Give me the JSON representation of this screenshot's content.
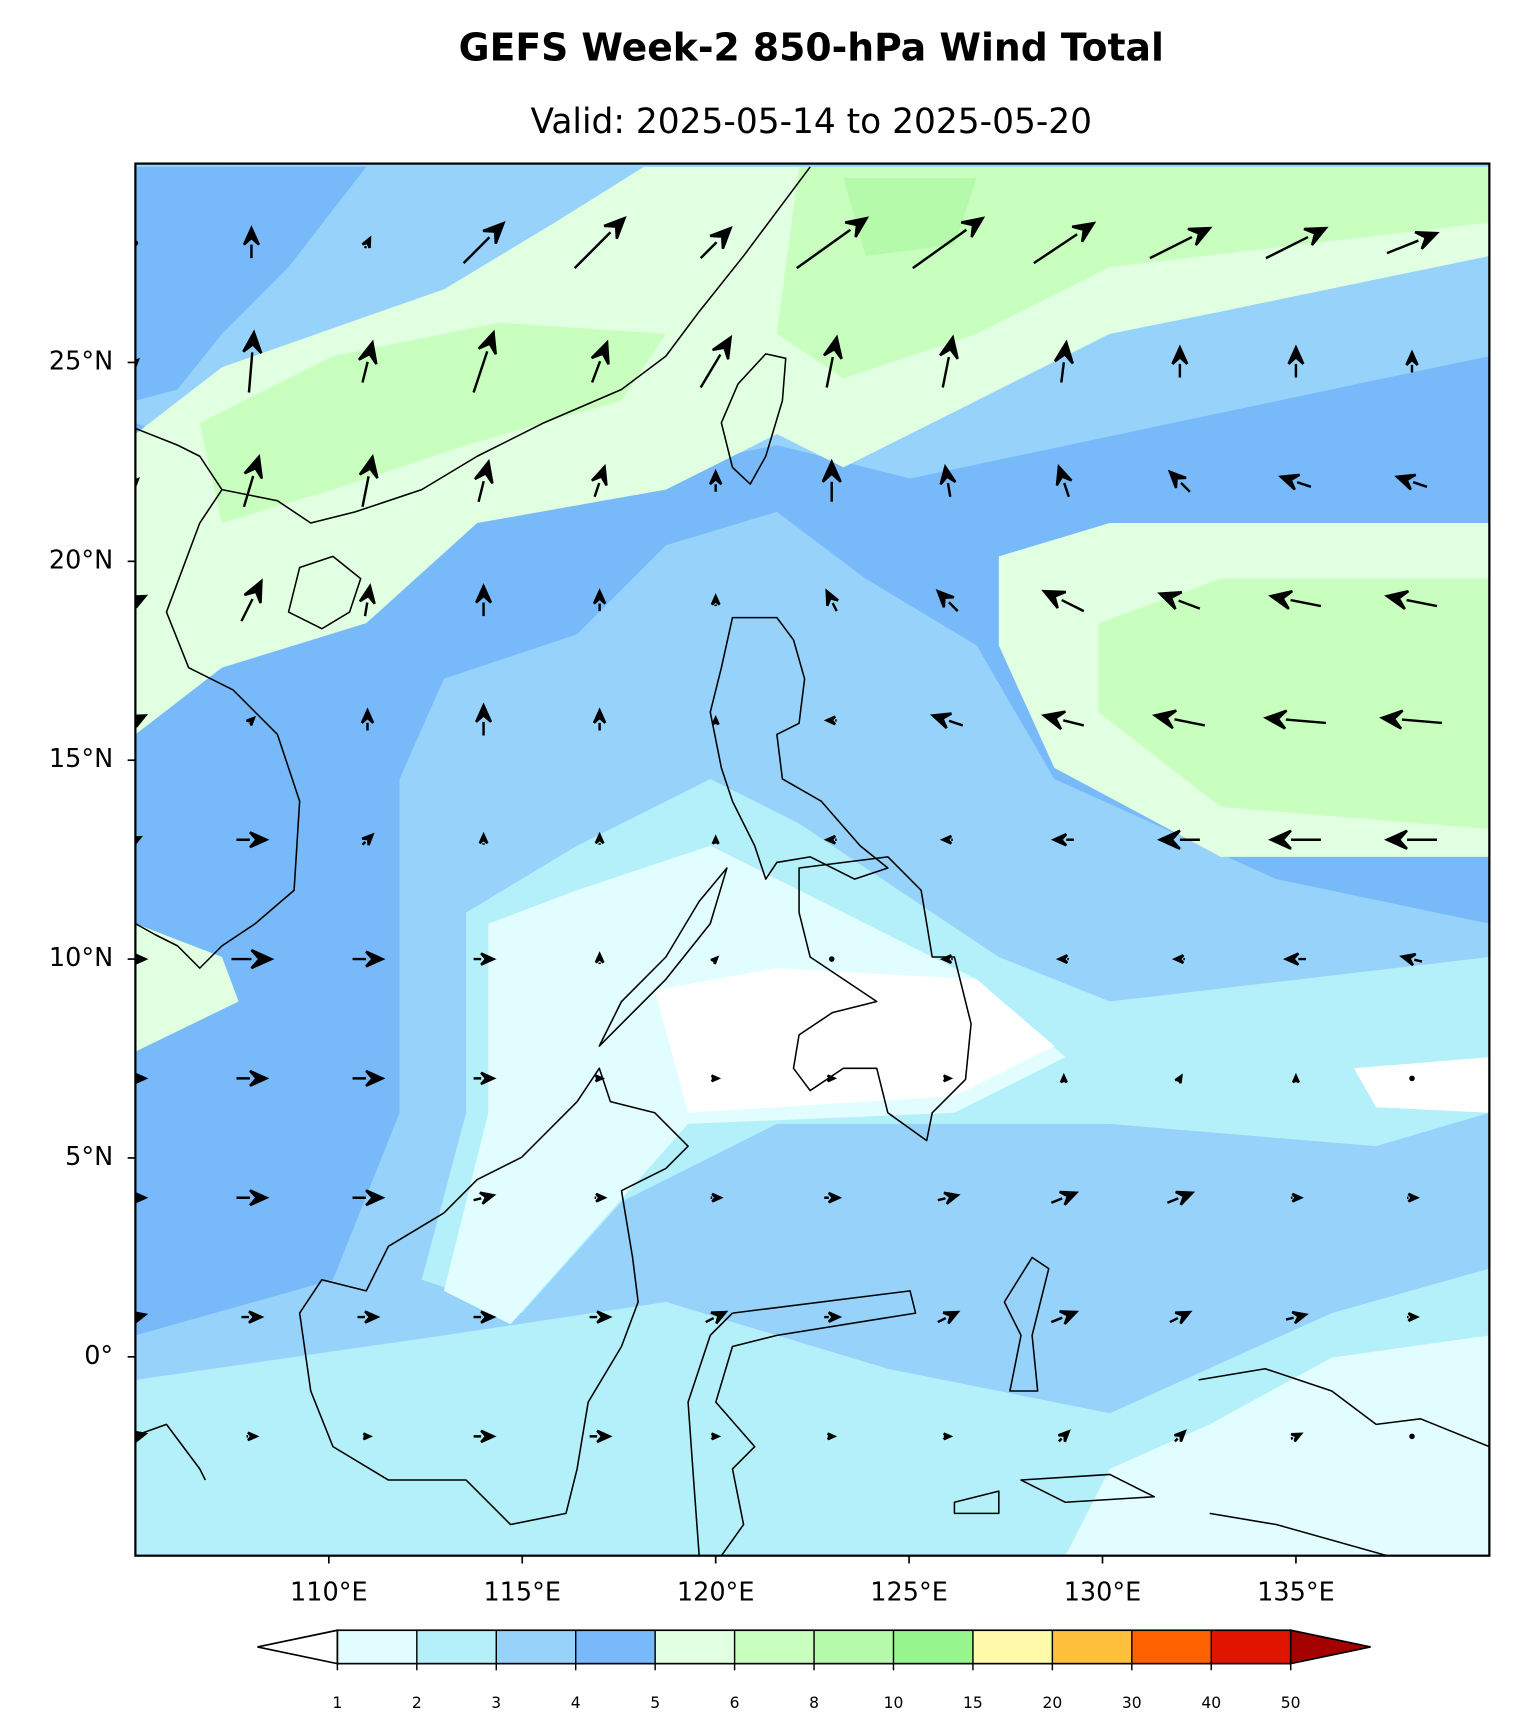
{
  "chart_data": {
    "type": "map",
    "title": "GEFS Week-2 850-hPa Wind Total",
    "subtitle": "Valid: 2025-05-14 to 2025-05-20",
    "xlim": [
      105,
      140
    ],
    "ylim": [
      -5,
      30
    ],
    "xticks": [
      {
        "value": 110,
        "label": "110°E"
      },
      {
        "value": 115,
        "label": "115°E"
      },
      {
        "value": 120,
        "label": "120°E"
      },
      {
        "value": 125,
        "label": "125°E"
      },
      {
        "value": 130,
        "label": "130°E"
      },
      {
        "value": 135,
        "label": "135°E"
      }
    ],
    "yticks": [
      {
        "value": 0,
        "label": "0°"
      },
      {
        "value": 5,
        "label": "5°N"
      },
      {
        "value": 10,
        "label": "10°N"
      },
      {
        "value": 15,
        "label": "15°N"
      },
      {
        "value": 20,
        "label": "20°N"
      },
      {
        "value": 25,
        "label": "25°N"
      }
    ],
    "colorbar": {
      "levels": [
        1,
        2,
        3,
        4,
        5,
        6,
        8,
        10,
        15,
        20,
        30,
        40,
        50
      ],
      "colors": [
        "#e1fdff",
        "#b4f0fa",
        "#96d2fa",
        "#78b9fa",
        "#e1ffe1",
        "#c8ffbe",
        "#b4faaa",
        "#96f58c",
        "#fffaaa",
        "#ffc03c",
        "#ff6000",
        "#e11400"
      ],
      "under": "#ffffff",
      "over": "#a50000"
    },
    "wind": {
      "lons": [
        105,
        108,
        111,
        114,
        117,
        120,
        123,
        126,
        129,
        132,
        135,
        138
      ],
      "lats": [
        28,
        25,
        22,
        19,
        16,
        13,
        10,
        7,
        4,
        1,
        -2
      ],
      "u": [
        [
          0,
          0,
          0.5,
          4,
          5,
          3,
          7,
          7,
          6,
          6,
          6,
          5
        ],
        [
          0.5,
          0.5,
          1,
          2,
          1.5,
          3,
          1,
          1,
          0.5,
          0,
          0,
          0
        ],
        [
          0.5,
          1.5,
          1,
          1,
          1,
          0,
          0,
          -0.5,
          -1,
          -2,
          -3,
          -3
        ],
        [
          2,
          2,
          0.5,
          0,
          0,
          0,
          -1,
          -2,
          -4,
          -4,
          -5,
          -5
        ],
        [
          2,
          0.5,
          0,
          0,
          0,
          0,
          -1,
          -3,
          -4,
          -5,
          -6,
          -6
        ],
        [
          1,
          3,
          1,
          0,
          0,
          0,
          -1,
          -1,
          -2,
          -4,
          -5,
          -5
        ],
        [
          2,
          4,
          3,
          2,
          0,
          0.3,
          0,
          -1,
          -1,
          -1,
          -2,
          -2
        ],
        [
          2,
          3,
          3,
          2,
          0.5,
          0.5,
          0.5,
          0.5,
          0,
          0.3,
          0,
          0
        ],
        [
          2,
          3,
          3,
          2,
          1,
          1,
          1.5,
          2,
          2.5,
          2.5,
          1,
          1
        ],
        [
          2,
          2,
          2,
          2,
          2,
          2,
          1.5,
          2,
          2.5,
          2,
          2,
          1
        ],
        [
          2,
          1,
          0.5,
          2,
          2,
          0.5,
          0.5,
          0.5,
          1,
          1,
          1,
          0
        ]
      ],
      "v": [
        [
          0,
          3,
          1,
          4,
          5,
          3,
          5,
          5,
          4,
          3,
          3,
          2
        ],
        [
          0.5,
          6,
          4,
          6,
          4,
          5,
          5,
          5,
          4,
          3,
          3,
          2
        ],
        [
          0.5,
          5,
          5,
          4,
          3,
          2,
          4,
          3,
          3,
          2,
          1,
          1
        ],
        [
          1,
          4,
          3,
          3,
          2,
          1,
          2,
          2,
          2,
          1.5,
          1,
          1
        ],
        [
          1,
          0.5,
          2,
          3,
          2,
          0.5,
          0,
          1,
          1,
          1,
          0.5,
          0.5
        ],
        [
          0.5,
          0,
          1,
          1,
          1,
          0.5,
          0,
          0,
          0,
          0,
          0,
          0
        ],
        [
          0,
          0,
          0,
          0,
          1,
          0.3,
          0,
          0,
          0,
          0,
          0,
          0.5
        ],
        [
          0,
          0,
          0,
          0,
          0,
          0,
          0,
          0,
          0.5,
          0.5,
          0.5,
          0
        ],
        [
          0,
          0,
          0,
          0.5,
          0,
          0,
          0,
          0.5,
          1,
          1,
          0,
          0
        ],
        [
          0.5,
          0,
          0,
          0,
          0,
          1,
          0,
          1,
          1,
          1,
          0.5,
          0
        ],
        [
          0.5,
          0,
          0,
          0,
          0,
          0,
          0,
          0,
          1,
          1,
          0.5,
          0
        ]
      ]
    }
  }
}
